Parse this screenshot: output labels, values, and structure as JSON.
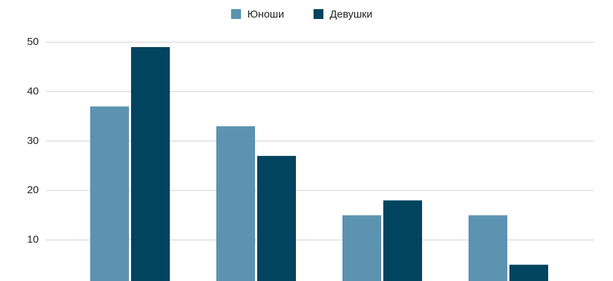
{
  "chart_data": {
    "type": "bar",
    "categories": [
      null,
      null,
      null,
      null
    ],
    "series": [
      {
        "name": "Юноши",
        "color": "#5b93b1",
        "values": [
          37,
          33,
          15,
          15
        ]
      },
      {
        "name": "Девушки",
        "color": "#00445f",
        "values": [
          49,
          27,
          18,
          5
        ]
      }
    ],
    "ylim": [
      0,
      50
    ],
    "yticks": [
      10,
      20,
      30,
      40,
      50
    ],
    "grid": true,
    "legend": "top"
  }
}
